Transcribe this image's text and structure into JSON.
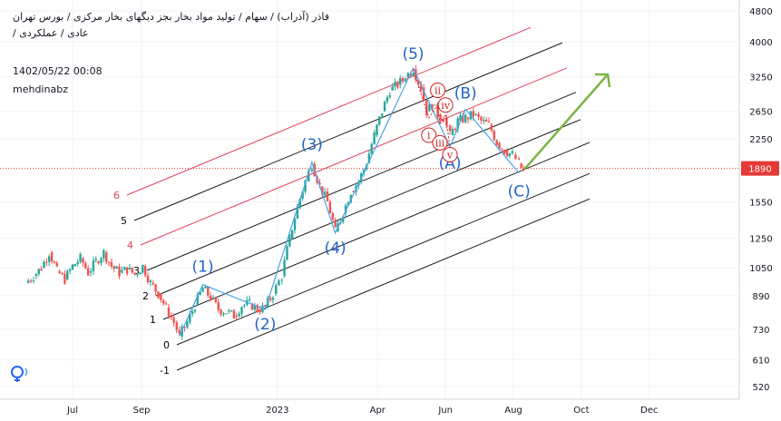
{
  "header": {
    "title_line1": "فاذر (آذراب) / سهام / تولید مواد بخار بجز دیگهای بخار مرکزی / بورس تهران",
    "title_line2": "عادی / عملکردی /",
    "timestamp": "1402/05/22 00:08",
    "author": "mehdinabz"
  },
  "colors": {
    "candle_up": "#26a69a",
    "candle_down": "#ef5350",
    "wave_line": "#4aa3e8",
    "wave_label": "#1e64c8",
    "fork_black": "#1a1a1a",
    "fork_red": "#e0405a",
    "arrow_green": "#7cb342",
    "subwave_red": "#d21e1e",
    "price_line": "#e53935"
  },
  "chart_data": {
    "type": "candlestick",
    "y_scale": "log",
    "ylim": [
      470,
      5200
    ],
    "y_ticks": [
      520,
      610,
      730,
      890,
      1050,
      1250,
      1550,
      1890,
      2250,
      2650,
      3250,
      4000,
      4800
    ],
    "x_labels": [
      "Jul",
      "Sep",
      "2023",
      "Apr",
      "Jun",
      "Aug",
      "Oct",
      "Dec"
    ],
    "current_price": 1890,
    "price_path": [
      [
        "2022-05-20",
        960
      ],
      [
        "2022-05-27",
        1000
      ],
      [
        "2022-06-03",
        1050
      ],
      [
        "2022-06-10",
        1150
      ],
      [
        "2022-06-17",
        1030
      ],
      [
        "2022-06-24",
        980
      ],
      [
        "2022-07-01",
        1060
      ],
      [
        "2022-07-08",
        1110
      ],
      [
        "2022-07-15",
        1020
      ],
      [
        "2022-07-22",
        1090
      ],
      [
        "2022-07-29",
        1150
      ],
      [
        "2022-08-05",
        1060
      ],
      [
        "2022-08-12",
        1020
      ],
      [
        "2022-08-19",
        1040
      ],
      [
        "2022-08-26",
        1010
      ],
      [
        "2022-09-02",
        1060
      ],
      [
        "2022-09-09",
        960
      ],
      [
        "2022-09-16",
        900
      ],
      [
        "2022-09-23",
        830
      ],
      [
        "2022-09-30",
        760
      ],
      [
        "2022-10-05",
        700
      ],
      [
        "2022-10-12",
        760
      ],
      [
        "2022-10-19",
        840
      ],
      [
        "2022-10-26",
        930
      ],
      [
        "2022-11-02",
        880
      ],
      [
        "2022-11-09",
        820
      ],
      [
        "2022-11-16",
        810
      ],
      [
        "2022-11-23",
        790
      ],
      [
        "2022-11-30",
        840
      ],
      [
        "2022-12-07",
        850
      ],
      [
        "2022-12-14",
        820
      ],
      [
        "2022-12-21",
        830
      ],
      [
        "2022-12-28",
        900
      ],
      [
        "2023-01-05",
        1000
      ],
      [
        "2023-01-12",
        1250
      ],
      [
        "2023-01-19",
        1500
      ],
      [
        "2023-01-26",
        1750
      ],
      [
        "2023-02-01",
        1940
      ],
      [
        "2023-02-08",
        1700
      ],
      [
        "2023-02-15",
        1550
      ],
      [
        "2023-02-22",
        1300
      ],
      [
        "2023-03-01",
        1450
      ],
      [
        "2023-03-08",
        1650
      ],
      [
        "2023-03-15",
        1750
      ],
      [
        "2023-03-22",
        1950
      ],
      [
        "2023-03-29",
        2300
      ],
      [
        "2023-04-05",
        2650
      ],
      [
        "2023-04-12",
        3000
      ],
      [
        "2023-04-19",
        3100
      ],
      [
        "2023-04-26",
        3250
      ],
      [
        "2023-05-03",
        3400
      ],
      [
        "2023-05-10",
        3050
      ],
      [
        "2023-05-15",
        2650
      ],
      [
        "2023-05-20",
        2750
      ],
      [
        "2023-05-25",
        2600
      ],
      [
        "2023-05-30",
        2550
      ],
      [
        "2023-06-05",
        2300
      ],
      [
        "2023-06-12",
        2500
      ],
      [
        "2023-06-19",
        2550
      ],
      [
        "2023-06-26",
        2600
      ],
      [
        "2023-07-03",
        2500
      ],
      [
        "2023-07-10",
        2450
      ],
      [
        "2023-07-17",
        2200
      ],
      [
        "2023-07-24",
        2100
      ],
      [
        "2023-07-31",
        2050
      ],
      [
        "2023-08-06",
        1950
      ],
      [
        "2023-08-10",
        1850
      ]
    ],
    "waves": [
      {
        "label": "(1)",
        "date": "2022-10-26",
        "price": 950
      },
      {
        "label": "(2)",
        "date": "2022-12-21",
        "price": 820
      },
      {
        "label": "(3)",
        "date": "2023-02-01",
        "price": 1960
      },
      {
        "label": "(4)",
        "date": "2023-02-22",
        "price": 1290
      },
      {
        "label": "(5)",
        "date": "2023-05-03",
        "price": 3420
      },
      {
        "label": "(A)",
        "date": "2023-06-05",
        "price": 2150
      },
      {
        "label": "(B)",
        "date": "2023-06-19",
        "price": 2680
      },
      {
        "label": "(C)",
        "date": "2023-08-06",
        "price": 1840
      }
    ],
    "subwaves": [
      {
        "label": "i",
        "date": "2023-05-17",
        "price": 2300
      },
      {
        "label": "ii",
        "date": "2023-05-25",
        "price": 3000
      },
      {
        "label": "iii",
        "date": "2023-05-27",
        "price": 2200
      },
      {
        "label": "iv",
        "date": "2023-06-01",
        "price": 2750
      },
      {
        "label": "v",
        "date": "2023-06-05",
        "price": 2050
      }
    ],
    "fork_labels": [
      "-1",
      "0",
      "1",
      "2",
      "3",
      "4",
      "5",
      "6"
    ]
  }
}
